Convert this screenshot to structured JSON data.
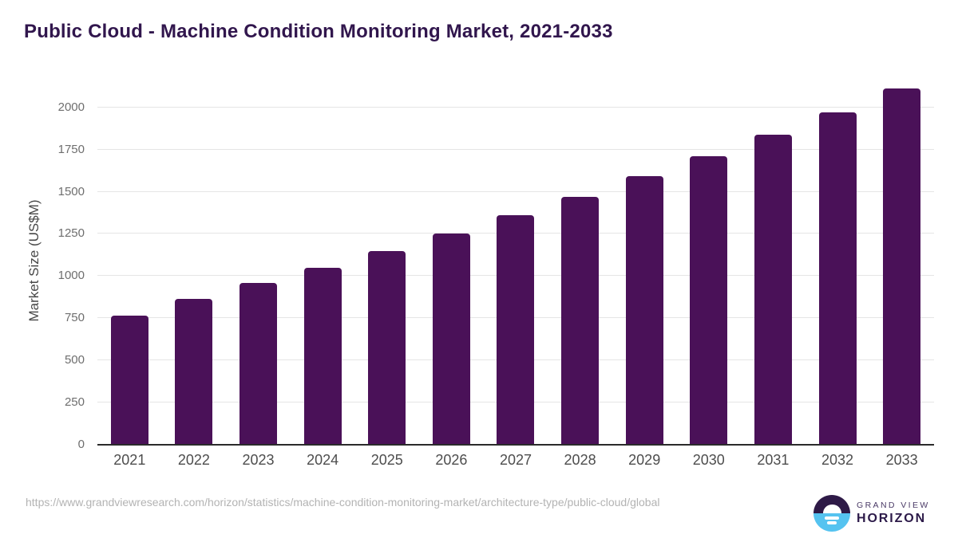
{
  "title": "Public Cloud - Machine Condition Monitoring Market, 2021-2033",
  "chart_data": {
    "type": "bar",
    "categories": [
      "2021",
      "2022",
      "2023",
      "2024",
      "2025",
      "2026",
      "2027",
      "2028",
      "2029",
      "2030",
      "2031",
      "2032",
      "2033"
    ],
    "values": [
      765,
      865,
      960,
      1050,
      1150,
      1250,
      1360,
      1470,
      1590,
      1710,
      1840,
      1970,
      2110
    ],
    "title": "Public Cloud - Machine Condition Monitoring Market, 2021-2033",
    "xlabel": "",
    "ylabel": "Market Size (US$M)",
    "yticks": [
      0,
      250,
      500,
      750,
      1000,
      1250,
      1500,
      1750,
      2000
    ],
    "ylim": [
      0,
      2164
    ],
    "grid": "horizontal",
    "legend": "none"
  },
  "footer": {
    "source_url": "https://www.grandviewresearch.com/horizon/statistics/machine-condition-monitoring-market/architecture-type/public-cloud/global"
  },
  "logo": {
    "line1": "GRAND VIEW",
    "line2": "HORIZON"
  },
  "colors": {
    "bar": "#4a1158",
    "title_text": "#31164d",
    "axis_line": "#2b2b2b",
    "gridline": "#e5e5e5",
    "y_tick_text": "#6e6e6e",
    "x_tick_text": "#4d4d4d",
    "url_text": "#b3b3b3",
    "logo_purple": "#2e1a47",
    "logo_blue": "#55c3f0"
  }
}
